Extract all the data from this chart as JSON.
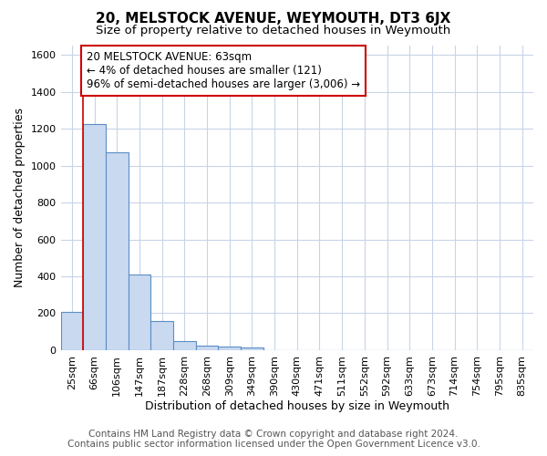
{
  "title": "20, MELSTOCK AVENUE, WEYMOUTH, DT3 6JX",
  "subtitle": "Size of property relative to detached houses in Weymouth",
  "xlabel": "Distribution of detached houses by size in Weymouth",
  "ylabel": "Number of detached properties",
  "bin_labels": [
    "25sqm",
    "66sqm",
    "106sqm",
    "147sqm",
    "187sqm",
    "228sqm",
    "268sqm",
    "309sqm",
    "349sqm",
    "390sqm",
    "430sqm",
    "471sqm",
    "511sqm",
    "552sqm",
    "592sqm",
    "633sqm",
    "673sqm",
    "714sqm",
    "754sqm",
    "795sqm",
    "835sqm"
  ],
  "bar_values": [
    205,
    1225,
    1070,
    410,
    160,
    50,
    25,
    20,
    15,
    0,
    0,
    0,
    0,
    0,
    0,
    0,
    0,
    0,
    0,
    0,
    0
  ],
  "bar_color": "#c9d9f0",
  "bar_edge_color": "#5b8ec4",
  "highlight_line_color": "#cc0000",
  "annotation_box_text": "20 MELSTOCK AVENUE: 63sqm\n← 4% of detached houses are smaller (121)\n96% of semi-detached houses are larger (3,006) →",
  "annotation_box_color": "#cc0000",
  "ylim": [
    0,
    1650
  ],
  "yticks": [
    0,
    200,
    400,
    600,
    800,
    1000,
    1200,
    1400,
    1600
  ],
  "footer_line1": "Contains HM Land Registry data © Crown copyright and database right 2024.",
  "footer_line2": "Contains public sector information licensed under the Open Government Licence v3.0.",
  "bg_color": "#ffffff",
  "plot_bg_color": "#ffffff",
  "grid_color": "#c8d4e8",
  "title_fontsize": 11,
  "subtitle_fontsize": 9.5,
  "axis_label_fontsize": 9,
  "tick_fontsize": 8,
  "footer_fontsize": 7.5
}
